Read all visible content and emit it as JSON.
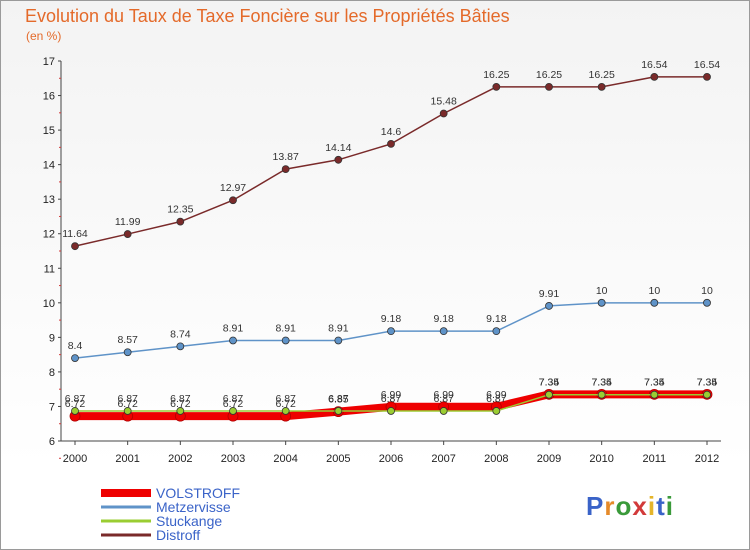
{
  "title": "Evolution du Taux de Taxe Foncière sur les Propriétés Bâties",
  "subtitle": "(en %)",
  "logo": "Proxiti",
  "chart_data": {
    "type": "line",
    "x": [
      "2000",
      "2001",
      "2002",
      "2003",
      "2004",
      "2005",
      "2006",
      "2007",
      "2008",
      "2009",
      "2010",
      "2011",
      "2012"
    ],
    "ylim": [
      6,
      17
    ],
    "yticks": [
      6,
      7,
      8,
      9,
      10,
      11,
      12,
      13,
      14,
      15,
      16,
      17
    ],
    "grid": false,
    "legend": "bottom-left",
    "series": [
      {
        "name": "VOLSTROFF",
        "color": "#ee0000",
        "width": 8,
        "values": [
          6.72,
          6.72,
          6.72,
          6.72,
          6.72,
          6.85,
          6.99,
          6.99,
          6.99,
          7.35,
          7.35,
          7.35,
          7.35
        ],
        "labels": [
          "6.72",
          "6.72",
          "6.72",
          "6.72",
          "6.72",
          "6.85",
          "6.99",
          "6.99",
          "6.99",
          "7.35",
          "7.35",
          "7.35",
          "7.35"
        ]
      },
      {
        "name": "Metzervisse",
        "color": "#5f93c8",
        "width": 1.5,
        "values": [
          8.4,
          8.57,
          8.74,
          8.91,
          8.91,
          8.91,
          9.18,
          9.18,
          9.18,
          9.91,
          10,
          10,
          10
        ],
        "labels": [
          "8.4",
          "8.57",
          "8.74",
          "8.91",
          "8.91",
          "8.91",
          "9.18",
          "9.18",
          "9.18",
          "9.91",
          "10",
          "10",
          "10"
        ]
      },
      {
        "name": "Stuckange",
        "color": "#9acd32",
        "width": 1.5,
        "values": [
          6.87,
          6.87,
          6.87,
          6.87,
          6.87,
          6.87,
          6.87,
          6.87,
          6.87,
          7.34,
          7.34,
          7.34,
          7.34
        ],
        "labels": [
          "6.87",
          "6.87",
          "6.87",
          "6.87",
          "6.87",
          "6.87",
          "6.87",
          "6.87",
          "6.87",
          "7.34",
          "7.34",
          "7.34",
          "7.34"
        ]
      },
      {
        "name": "Distroff",
        "color": "#7a2a2a",
        "width": 1.5,
        "values": [
          11.64,
          11.99,
          12.35,
          12.97,
          13.87,
          14.14,
          14.6,
          15.48,
          16.25,
          16.25,
          16.25,
          16.54,
          16.54
        ],
        "labels": [
          "11.64",
          "11.99",
          "12.35",
          "12.97",
          "13.87",
          "14.14",
          "14.6",
          "15.48",
          "16.25",
          "16.25",
          "16.25",
          "16.54",
          "16.54"
        ]
      }
    ]
  }
}
